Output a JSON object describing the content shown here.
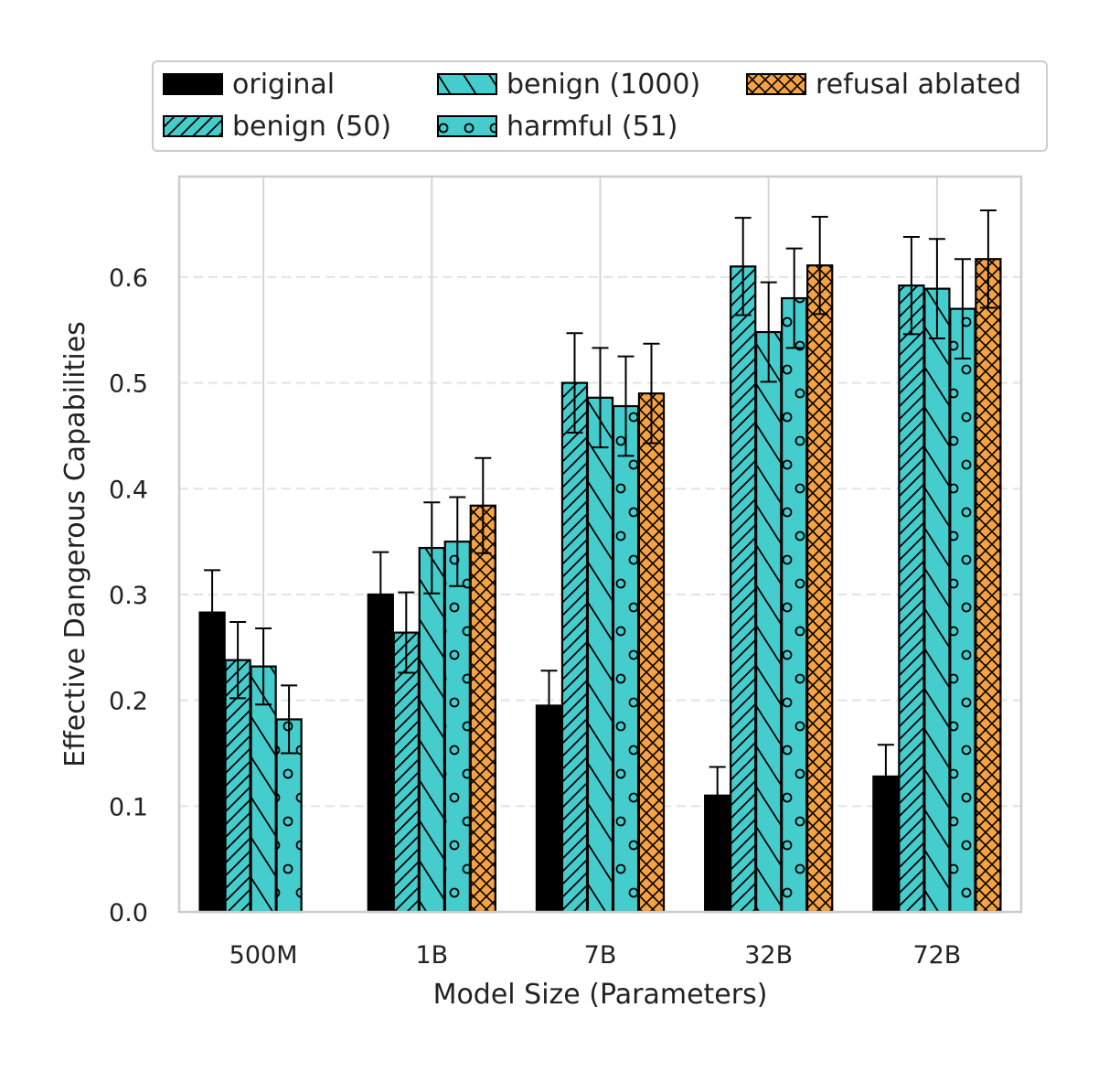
{
  "chart_data": {
    "type": "bar",
    "title": "",
    "xlabel": "Model Size (Parameters)",
    "ylabel": "Effective Dangerous Capabilities",
    "ylim": [
      0,
      0.695
    ],
    "yticks": [
      "0.0",
      "0.1",
      "0.2",
      "0.3",
      "0.4",
      "0.5",
      "0.6"
    ],
    "grid": true,
    "legend_position": "top",
    "categories": [
      "500M",
      "1B",
      "7B",
      "32B",
      "72B"
    ],
    "series": [
      {
        "name": "original",
        "pattern": "solid",
        "color": "#000000",
        "values": [
          0.283,
          0.3,
          0.195,
          0.11,
          0.128
        ],
        "errors": [
          0.04,
          0.04,
          0.033,
          0.027,
          0.03
        ]
      },
      {
        "name": "benign (50)",
        "pattern": "diagonal",
        "color": "#45cccc",
        "values": [
          0.238,
          0.264,
          0.5,
          0.61,
          0.592
        ],
        "errors": [
          0.036,
          0.038,
          0.047,
          0.046,
          0.046
        ]
      },
      {
        "name": "benign (1000)",
        "pattern": "backslash",
        "color": "#45cccc",
        "values": [
          0.232,
          0.344,
          0.486,
          0.548,
          0.589
        ],
        "errors": [
          0.036,
          0.043,
          0.047,
          0.047,
          0.047
        ]
      },
      {
        "name": "harmful (51)",
        "pattern": "circles",
        "color": "#45cccc",
        "values": [
          0.182,
          0.35,
          0.478,
          0.58,
          0.57
        ],
        "errors": [
          0.032,
          0.042,
          0.047,
          0.047,
          0.047
        ]
      },
      {
        "name": "refusal ablated",
        "pattern": "crosshatch",
        "color": "#f5a243",
        "values": [
          null,
          0.384,
          0.49,
          0.611,
          0.617
        ],
        "errors": [
          null,
          0.045,
          0.047,
          0.046,
          0.046
        ]
      }
    ]
  }
}
